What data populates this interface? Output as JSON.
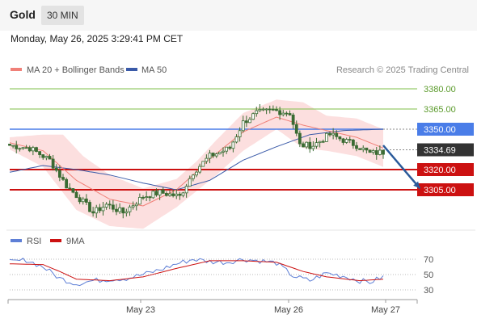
{
  "header": {
    "instrument": "Gold",
    "interval": "30 MIN",
    "datetime": "Monday, May 26, 2025 3:29:41 PM CET"
  },
  "legend": {
    "ma20": "MA 20 + Bollinger Bands",
    "ma50": "MA 50",
    "credit": "Research © 2025 Trading Central",
    "rsi": "RSI",
    "ma9": "9MA"
  },
  "colors": {
    "ma20": "#f08078",
    "ma50": "#3a5aa8",
    "band_fill": "#fcd9d9",
    "candle": "#3a6b32",
    "resistance": "#7fbf4a",
    "pivot": "#4a7de8",
    "support": "#cc1111",
    "last": "#333333",
    "arrow": "#2a5a9a",
    "rsi": "#5e7fd6",
    "rsi_ma": "#cc1111"
  },
  "chart_data": [
    {
      "type": "line",
      "title": "",
      "ylim": [
        3266,
        3390
      ],
      "x_ticks": [
        "May 23",
        "May 26",
        "May 27"
      ],
      "levels": [
        {
          "value": 3380.0,
          "label": "3380.00",
          "kind": "resistance"
        },
        {
          "value": 3365.0,
          "label": "3365.00",
          "kind": "resistance"
        },
        {
          "value": 3350.0,
          "label": "3350.00",
          "kind": "pivot"
        },
        {
          "value": 3334.69,
          "label": "3334.69",
          "kind": "last"
        },
        {
          "value": 3320.0,
          "label": "3320.00",
          "kind": "support"
        },
        {
          "value": 3305.0,
          "label": "3305.00",
          "kind": "support"
        }
      ],
      "price_anchors": [
        [
          0,
          3338
        ],
        [
          6,
          3336
        ],
        [
          12,
          3327
        ],
        [
          17,
          3308
        ],
        [
          22,
          3296
        ],
        [
          25,
          3288
        ],
        [
          29,
          3294
        ],
        [
          34,
          3288
        ],
        [
          40,
          3300
        ],
        [
          45,
          3303
        ],
        [
          51,
          3300
        ],
        [
          55,
          3318
        ],
        [
          60,
          3330
        ],
        [
          66,
          3336
        ],
        [
          70,
          3355
        ],
        [
          74,
          3362
        ],
        [
          79,
          3364
        ],
        [
          84,
          3362
        ],
        [
          87,
          3338
        ],
        [
          91,
          3338
        ],
        [
          96,
          3346
        ],
        [
          100,
          3342
        ],
        [
          104,
          3338
        ],
        [
          108,
          3332
        ],
        [
          112,
          3333
        ]
      ],
      "ma20_anchors": [
        [
          0,
          3340
        ],
        [
          10,
          3334
        ],
        [
          20,
          3312
        ],
        [
          30,
          3298
        ],
        [
          40,
          3293
        ],
        [
          50,
          3305
        ],
        [
          55,
          3316
        ],
        [
          60,
          3328
        ],
        [
          70,
          3348
        ],
        [
          80,
          3359
        ],
        [
          88,
          3353
        ],
        [
          95,
          3349
        ],
        [
          104,
          3344
        ],
        [
          112,
          3336
        ]
      ],
      "bb_upper_anchors": [
        [
          0,
          3344
        ],
        [
          10,
          3346
        ],
        [
          16,
          3346
        ],
        [
          22,
          3330
        ],
        [
          30,
          3316
        ],
        [
          40,
          3306
        ],
        [
          50,
          3313
        ],
        [
          56,
          3326
        ],
        [
          62,
          3342
        ],
        [
          70,
          3362
        ],
        [
          80,
          3372
        ],
        [
          88,
          3370
        ],
        [
          95,
          3360
        ],
        [
          104,
          3358
        ],
        [
          112,
          3350
        ]
      ],
      "bb_lower_anchors": [
        [
          0,
          3335
        ],
        [
          10,
          3322
        ],
        [
          20,
          3290
        ],
        [
          30,
          3278
        ],
        [
          40,
          3276
        ],
        [
          50,
          3292
        ],
        [
          56,
          3304
        ],
        [
          62,
          3316
        ],
        [
          70,
          3334
        ],
        [
          80,
          3350
        ],
        [
          88,
          3336
        ],
        [
          95,
          3334
        ],
        [
          104,
          3330
        ],
        [
          112,
          3322
        ]
      ],
      "ma50_anchors": [
        [
          0,
          3318
        ],
        [
          10,
          3323
        ],
        [
          20,
          3320
        ],
        [
          30,
          3316
        ],
        [
          40,
          3310
        ],
        [
          50,
          3305
        ],
        [
          60,
          3312
        ],
        [
          70,
          3327
        ],
        [
          80,
          3337
        ],
        [
          90,
          3346
        ],
        [
          100,
          3349
        ],
        [
          112,
          3350
        ]
      ],
      "forecast_arrow": {
        "from": [
          112,
          3338
        ],
        "to": [
          123,
          3306
        ]
      }
    },
    {
      "type": "line",
      "title": "RSI",
      "ylim": [
        20,
        80
      ],
      "y_ticks": [
        70,
        50,
        30
      ],
      "rsi_anchors": [
        [
          0,
          66
        ],
        [
          5,
          69
        ],
        [
          10,
          60
        ],
        [
          15,
          45
        ],
        [
          20,
          38
        ],
        [
          25,
          42
        ],
        [
          30,
          44
        ],
        [
          35,
          45
        ],
        [
          40,
          50
        ],
        [
          45,
          56
        ],
        [
          50,
          64
        ],
        [
          55,
          70
        ],
        [
          60,
          67
        ],
        [
          65,
          66
        ],
        [
          70,
          70
        ],
        [
          75,
          68
        ],
        [
          80,
          65
        ],
        [
          85,
          48
        ],
        [
          90,
          42
        ],
        [
          95,
          52
        ],
        [
          100,
          48
        ],
        [
          105,
          42
        ],
        [
          108,
          40
        ],
        [
          112,
          47
        ]
      ],
      "rsi_ma_anchors": [
        [
          0,
          64
        ],
        [
          10,
          63
        ],
        [
          15,
          54
        ],
        [
          20,
          44
        ],
        [
          30,
          42
        ],
        [
          40,
          47
        ],
        [
          50,
          58
        ],
        [
          60,
          68
        ],
        [
          70,
          68
        ],
        [
          80,
          66
        ],
        [
          88,
          54
        ],
        [
          95,
          47
        ],
        [
          105,
          42
        ],
        [
          112,
          44
        ]
      ]
    }
  ]
}
